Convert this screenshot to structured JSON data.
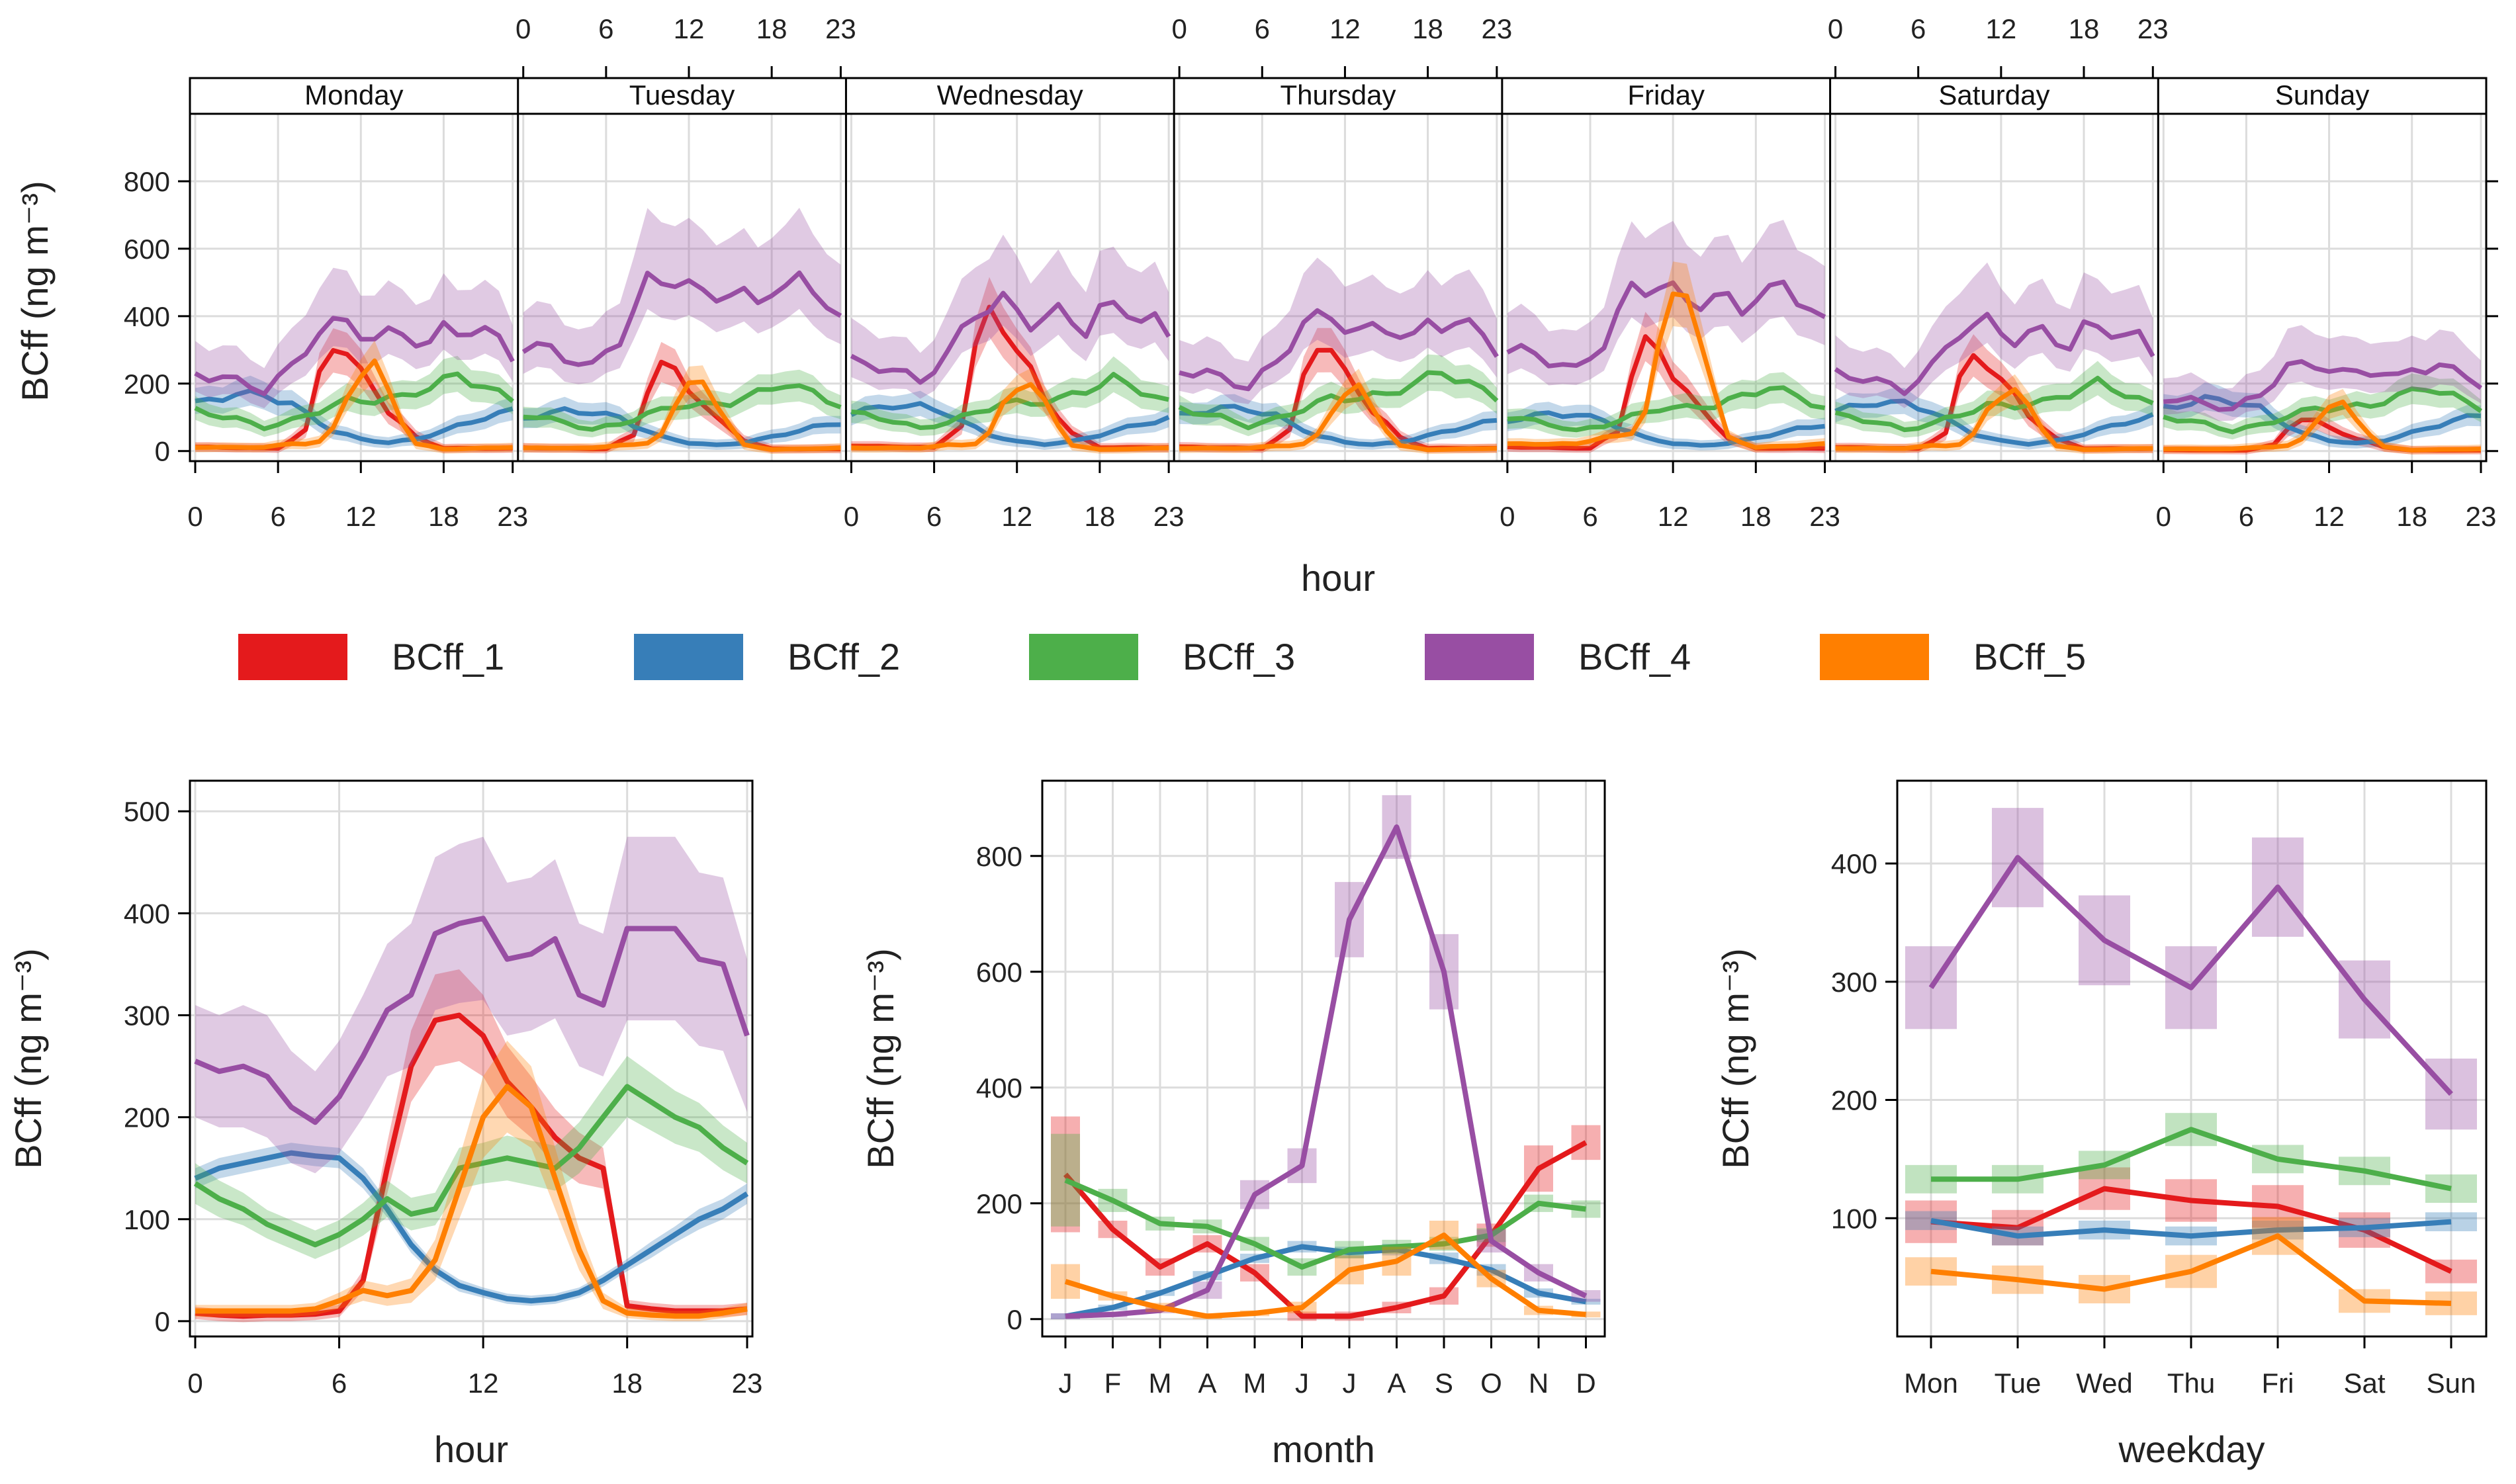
{
  "chart_data": [
    {
      "type": "line",
      "title": "",
      "xlabel": "hour",
      "ylabel": "BCff (ng m⁻³)",
      "ylim": [
        -30,
        1000
      ],
      "yticks": [
        0,
        200,
        400,
        600,
        800
      ],
      "xticks": [
        0,
        6,
        12,
        18,
        23
      ],
      "panels": [
        "Monday",
        "Tuesday",
        "Wednesday",
        "Thursday",
        "Friday",
        "Saturday",
        "Sunday"
      ],
      "series": [
        {
          "name": "BCff_1",
          "color": "#e41a1c",
          "keys": [
            [
              0,
              12
            ],
            [
              6,
              8
            ],
            [
              8,
              60
            ],
            [
              9,
              230
            ],
            [
              10,
              320
            ],
            [
              11,
              290
            ],
            [
              12,
              230
            ],
            [
              13,
              180
            ],
            [
              14,
              120
            ],
            [
              16,
              40
            ],
            [
              18,
              8
            ],
            [
              23,
              8
            ]
          ],
          "daymul": [
            1.0,
            0.8,
            1.3,
            1.0,
            1.0,
            0.9,
            0.3
          ]
        },
        {
          "name": "BCff_2",
          "color": "#377eb8",
          "keys": [
            [
              0,
              140
            ],
            [
              3,
              170
            ],
            [
              5,
              165
            ],
            [
              7,
              140
            ],
            [
              8,
              110
            ],
            [
              10,
              60
            ],
            [
              12,
              35
            ],
            [
              14,
              25
            ],
            [
              16,
              35
            ],
            [
              18,
              60
            ],
            [
              21,
              100
            ],
            [
              23,
              120
            ]
          ],
          "daymul": [
            1.0,
            0.7,
            0.8,
            0.75,
            0.65,
            0.85,
            0.9
          ]
        },
        {
          "name": "BCff_3",
          "color": "#4daf4a",
          "keys": [
            [
              0,
              120
            ],
            [
              3,
              95
            ],
            [
              5,
              70
            ],
            [
              7,
              90
            ],
            [
              9,
              120
            ],
            [
              11,
              150
            ],
            [
              13,
              150
            ],
            [
              15,
              160
            ],
            [
              17,
              190
            ],
            [
              19,
              225
            ],
            [
              21,
              190
            ],
            [
              23,
              150
            ]
          ],
          "daymul": [
            1.0,
            0.9,
            0.95,
            1.05,
            0.85,
            0.9,
            0.85
          ]
        },
        {
          "name": "BCff_4",
          "color": "#984ea3",
          "keys": [
            [
              0,
              240
            ],
            [
              2,
              230
            ],
            [
              5,
              190
            ],
            [
              7,
              260
            ],
            [
              9,
              380
            ],
            [
              11,
              400
            ],
            [
              13,
              350
            ],
            [
              15,
              370
            ],
            [
              17,
              330
            ],
            [
              18,
              380
            ],
            [
              20,
              380
            ],
            [
              22,
              350
            ],
            [
              23,
              300
            ]
          ],
          "daymul": [
            0.95,
            1.3,
            1.1,
            1.0,
            1.25,
            0.95,
            0.65
          ]
        },
        {
          "name": "BCff_5",
          "color": "#ff7f00",
          "keys": [
            [
              0,
              10
            ],
            [
              5,
              10
            ],
            [
              7,
              20
            ],
            [
              8,
              20
            ],
            [
              9,
              25
            ],
            [
              10,
              60
            ],
            [
              11,
              150
            ],
            [
              12,
              210
            ],
            [
              13,
              230
            ],
            [
              14,
              160
            ],
            [
              15,
              80
            ],
            [
              16,
              20
            ],
            [
              18,
              5
            ],
            [
              23,
              10
            ]
          ],
          "daymul": [
            1.1,
            0.9,
            0.9,
            0.8,
            2.1,
            0.8,
            0.6
          ]
        }
      ]
    },
    {
      "type": "line",
      "xlabel": "hour",
      "ylabel": "BCff (ng m⁻³)",
      "ylim": [
        -15,
        530
      ],
      "yticks": [
        0,
        100,
        200,
        300,
        400,
        500
      ],
      "xticks": [
        0,
        6,
        12,
        18,
        23
      ],
      "x": [
        0,
        1,
        2,
        3,
        4,
        5,
        6,
        7,
        8,
        9,
        10,
        11,
        12,
        13,
        14,
        15,
        16,
        17,
        18,
        19,
        20,
        21,
        22,
        23
      ],
      "series": [
        {
          "name": "BCff_1",
          "color": "#e41a1c",
          "values": [
            8,
            6,
            5,
            6,
            6,
            7,
            10,
            40,
            150,
            250,
            295,
            300,
            280,
            235,
            210,
            180,
            160,
            150,
            15,
            12,
            10,
            10,
            10,
            12
          ],
          "band": [
            6,
            6,
            6,
            6,
            6,
            6,
            6,
            10,
            25,
            35,
            45,
            45,
            40,
            35,
            30,
            28,
            25,
            20,
            6,
            6,
            6,
            6,
            6,
            6
          ]
        },
        {
          "name": "BCff_2",
          "color": "#377eb8",
          "values": [
            140,
            150,
            155,
            160,
            165,
            162,
            160,
            140,
            110,
            75,
            50,
            35,
            28,
            22,
            20,
            22,
            28,
            40,
            55,
            70,
            85,
            100,
            110,
            125
          ],
          "band": [
            10,
            10,
            10,
            10,
            10,
            10,
            10,
            10,
            8,
            8,
            6,
            6,
            5,
            5,
            5,
            5,
            5,
            6,
            6,
            8,
            8,
            10,
            10,
            10
          ]
        },
        {
          "name": "BCff_3",
          "color": "#4daf4a",
          "values": [
            135,
            120,
            110,
            95,
            85,
            75,
            85,
            100,
            120,
            105,
            110,
            150,
            155,
            160,
            155,
            150,
            170,
            200,
            230,
            215,
            200,
            190,
            170,
            155
          ],
          "band": [
            20,
            18,
            16,
            14,
            14,
            14,
            14,
            16,
            18,
            16,
            16,
            20,
            20,
            22,
            22,
            22,
            25,
            28,
            30,
            28,
            26,
            24,
            22,
            20
          ]
        },
        {
          "name": "BCff_4",
          "color": "#984ea3",
          "values": [
            255,
            245,
            250,
            240,
            210,
            195,
            220,
            260,
            305,
            320,
            380,
            390,
            395,
            355,
            360,
            375,
            320,
            310,
            385,
            385,
            385,
            355,
            350,
            280
          ],
          "band": [
            55,
            55,
            60,
            60,
            55,
            50,
            55,
            60,
            65,
            70,
            75,
            78,
            80,
            75,
            75,
            78,
            70,
            70,
            90,
            90,
            90,
            85,
            85,
            75
          ]
        },
        {
          "name": "BCff_5",
          "color": "#ff7f00",
          "values": [
            10,
            10,
            10,
            10,
            10,
            12,
            20,
            30,
            25,
            30,
            60,
            130,
            200,
            230,
            210,
            140,
            70,
            20,
            8,
            6,
            5,
            5,
            8,
            12
          ],
          "band": [
            6,
            6,
            6,
            6,
            6,
            6,
            8,
            10,
            10,
            12,
            20,
            30,
            40,
            45,
            40,
            30,
            20,
            8,
            5,
            5,
            5,
            5,
            5,
            6
          ]
        }
      ]
    },
    {
      "type": "line",
      "xlabel": "month",
      "ylabel": "BCff (ng m⁻³)",
      "ylim": [
        -30,
        930
      ],
      "yticks": [
        0,
        200,
        400,
        600,
        800
      ],
      "categories": [
        "J",
        "F",
        "M",
        "A",
        "M",
        "J",
        "J",
        "A",
        "S",
        "O",
        "N",
        "D"
      ],
      "series": [
        {
          "name": "BCff_1",
          "color": "#e41a1c",
          "values": [
            250,
            155,
            90,
            130,
            80,
            5,
            5,
            20,
            40,
            145,
            260,
            305
          ],
          "band": [
            100,
            15,
            15,
            15,
            15,
            8,
            8,
            10,
            15,
            20,
            40,
            30
          ]
        },
        {
          "name": "BCff_2",
          "color": "#377eb8",
          "values": [
            5,
            20,
            45,
            75,
            105,
            125,
            115,
            120,
            105,
            85,
            45,
            30
          ],
          "band": [
            5,
            5,
            5,
            8,
            8,
            10,
            10,
            10,
            10,
            10,
            8,
            5
          ]
        },
        {
          "name": "BCff_3",
          "color": "#4daf4a",
          "values": [
            240,
            205,
            165,
            160,
            130,
            90,
            120,
            125,
            130,
            145,
            200,
            190
          ],
          "band": [
            80,
            20,
            12,
            12,
            12,
            15,
            15,
            12,
            12,
            12,
            15,
            15
          ]
        },
        {
          "name": "BCff_4",
          "color": "#984ea3",
          "values": [
            5,
            8,
            15,
            50,
            215,
            265,
            690,
            850,
            600,
            135,
            80,
            40
          ],
          "band": [
            5,
            5,
            5,
            15,
            25,
            30,
            65,
            55,
            65,
            20,
            15,
            10
          ]
        },
        {
          "name": "BCff_5",
          "color": "#ff7f00",
          "values": [
            65,
            40,
            20,
            5,
            10,
            20,
            85,
            100,
            145,
            70,
            15,
            8
          ],
          "band": [
            30,
            8,
            8,
            5,
            5,
            10,
            25,
            25,
            25,
            15,
            8,
            5
          ]
        }
      ]
    },
    {
      "type": "line",
      "xlabel": "weekday",
      "ylabel": "BCff (ng m⁻³)",
      "ylim": [
        0,
        470
      ],
      "yticks": [
        100,
        200,
        300,
        400
      ],
      "categories": [
        "Mon",
        "Tue",
        "Wed",
        "Thu",
        "Fri",
        "Sat",
        "Sun"
      ],
      "series": [
        {
          "name": "BCff_1",
          "color": "#e41a1c",
          "values": [
            97,
            92,
            125,
            115,
            110,
            90,
            55
          ],
          "band": [
            18,
            15,
            18,
            18,
            18,
            15,
            10
          ]
        },
        {
          "name": "BCff_2",
          "color": "#377eb8",
          "values": [
            98,
            85,
            90,
            85,
            90,
            92,
            97
          ],
          "band": [
            8,
            8,
            8,
            8,
            8,
            8,
            8
          ]
        },
        {
          "name": "BCff_3",
          "color": "#4daf4a",
          "values": [
            133,
            133,
            145,
            175,
            150,
            140,
            125
          ],
          "band": [
            12,
            12,
            12,
            14,
            12,
            12,
            12
          ]
        },
        {
          "name": "BCff_4",
          "color": "#984ea3",
          "values": [
            295,
            405,
            335,
            295,
            380,
            285,
            205
          ],
          "band": [
            35,
            42,
            38,
            35,
            42,
            33,
            30
          ]
        },
        {
          "name": "BCff_5",
          "color": "#ff7f00",
          "values": [
            55,
            48,
            40,
            55,
            85,
            30,
            28
          ],
          "band": [
            12,
            12,
            12,
            14,
            16,
            10,
            10
          ]
        }
      ]
    }
  ]
}
